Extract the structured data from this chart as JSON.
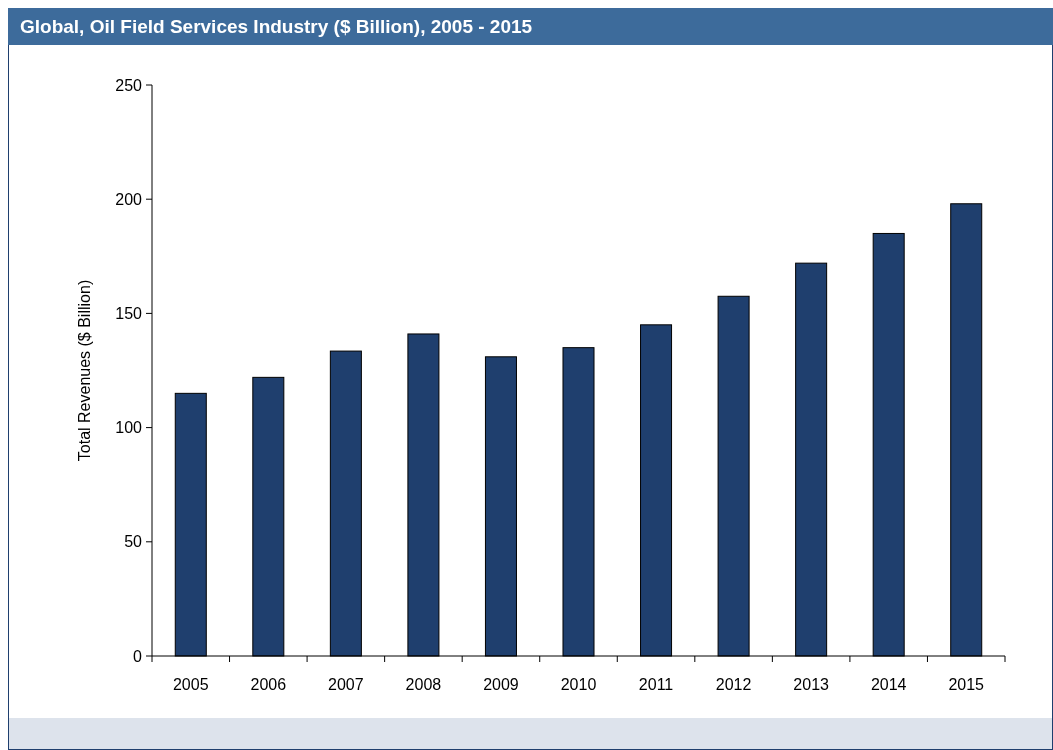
{
  "chart_data": {
    "type": "bar",
    "title": "Global, Oil Field Services Industry ($ Billion), 2005 - 2015",
    "ylabel": "Total Revenues ($ Billion)",
    "categories": [
      "2005",
      "2006",
      "2007",
      "2008",
      "2009",
      "2010",
      "2011",
      "2012",
      "2013",
      "2014",
      "2015"
    ],
    "values": [
      115,
      122,
      133.5,
      141,
      131,
      135,
      145,
      157.5,
      172,
      185,
      198
    ],
    "color": "#1f3f6e",
    "ylim": [
      0,
      250
    ],
    "yticks": [
      0,
      50,
      100,
      150,
      200,
      250
    ],
    "grid": false
  }
}
